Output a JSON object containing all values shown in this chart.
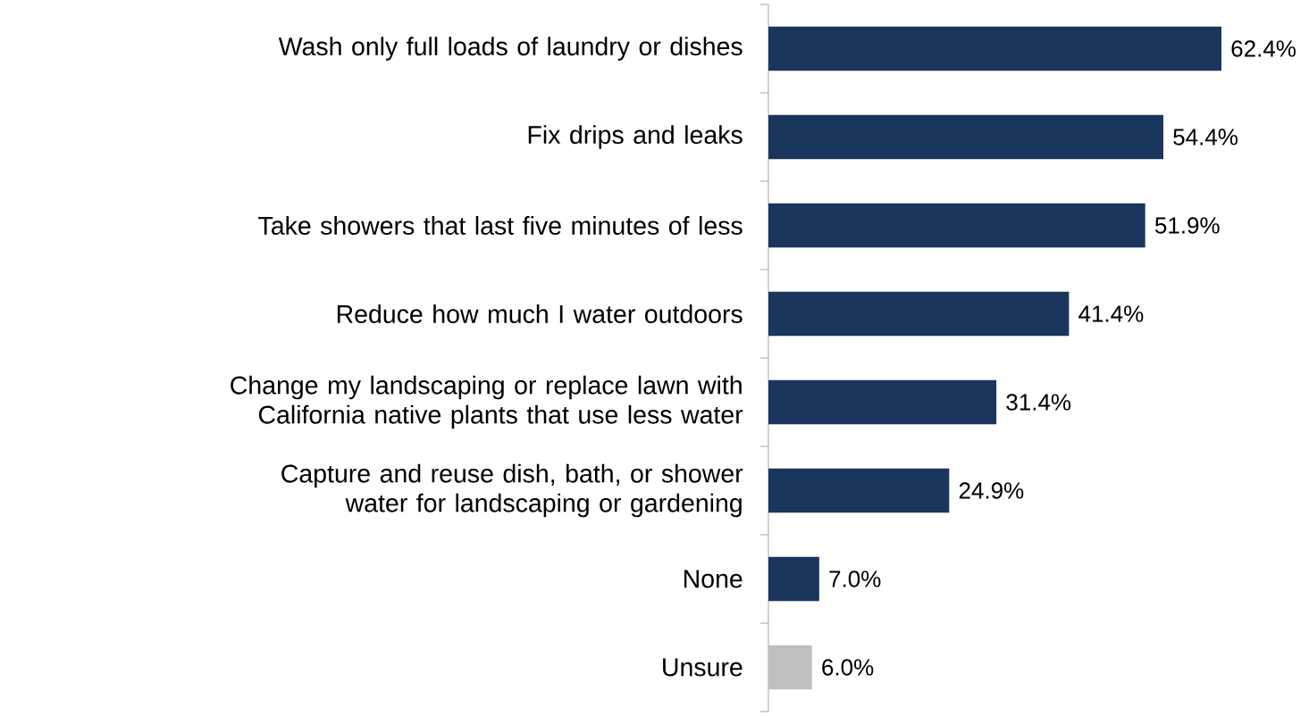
{
  "chart_data": {
    "type": "bar",
    "orientation": "horizontal",
    "categories": [
      "Wash only full loads of laundry or dishes",
      "Fix drips and leaks",
      "Take showers that last five minutes of less",
      "Reduce how much I water outdoors",
      "Change my landscaping or replace lawn with California native plants that use less water",
      "Capture and reuse dish, bath, or shower water for landscaping or gardening",
      "None",
      "Unsure"
    ],
    "values": [
      62.4,
      54.4,
      51.9,
      41.4,
      31.4,
      24.9,
      7.0,
      6.0
    ],
    "value_labels": [
      "62.4%",
      "54.4%",
      "51.9%",
      "41.4%",
      "31.4%",
      "24.9%",
      "7.0%",
      "6.0%"
    ],
    "colors": [
      "#1b365d",
      "#1b365d",
      "#1b365d",
      "#1b365d",
      "#1b365d",
      "#1b365d",
      "#1b365d",
      "#bfbfbf"
    ]
  }
}
